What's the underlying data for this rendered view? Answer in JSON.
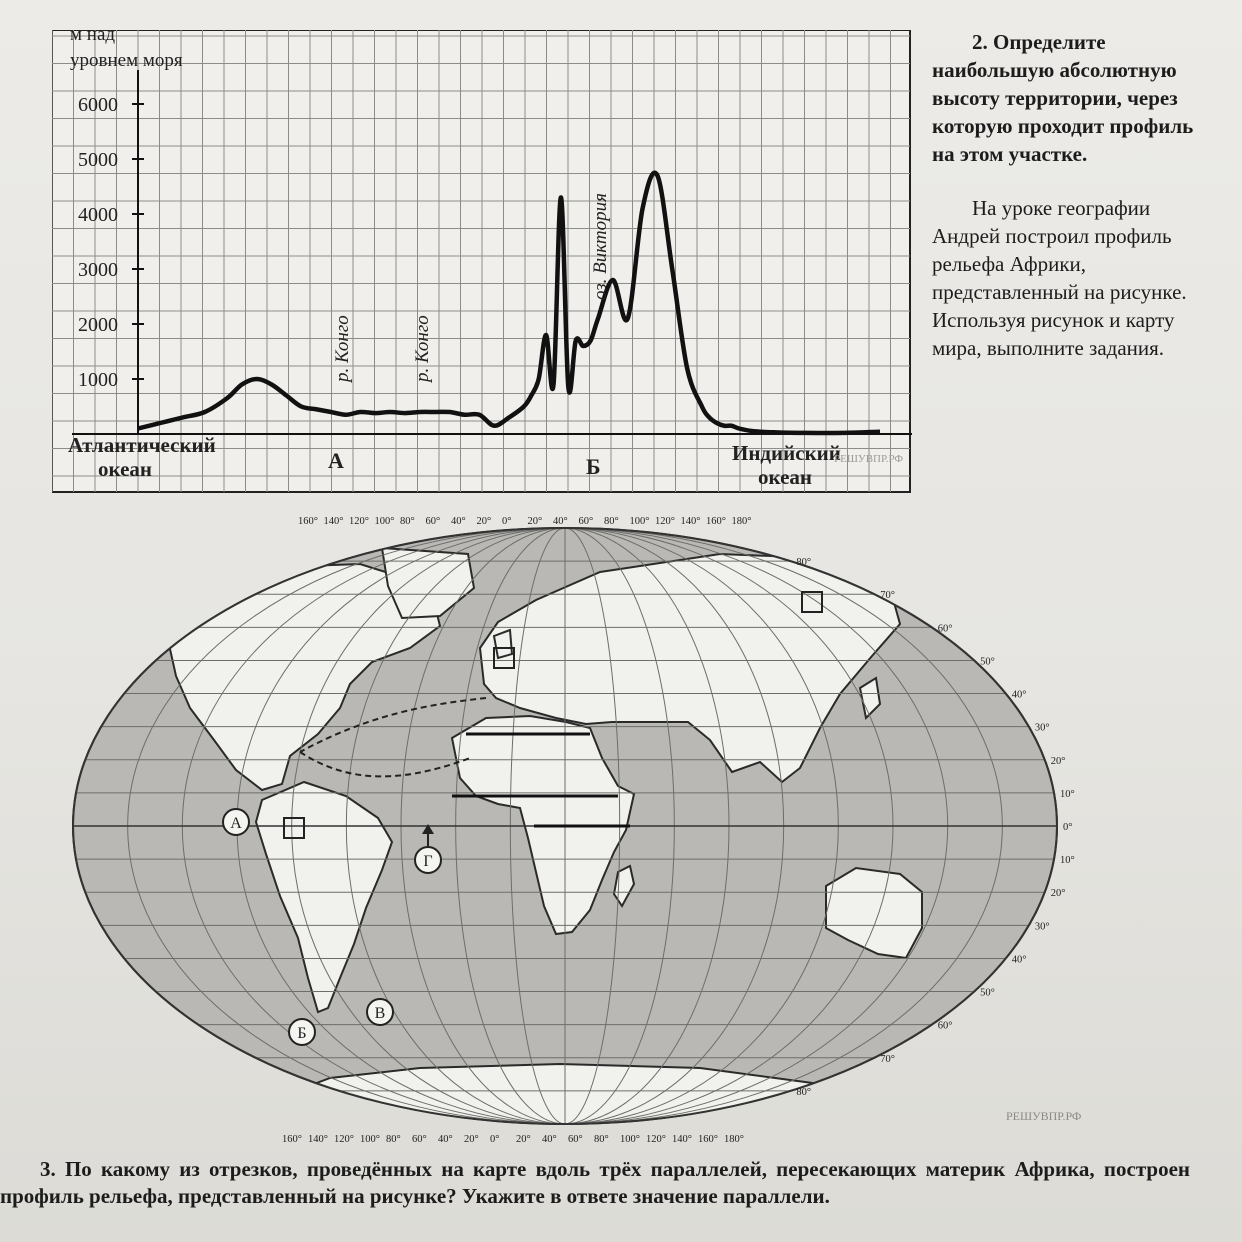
{
  "chart_data": {
    "type": "area",
    "ylabel": "м над уровнем моря",
    "ylim": [
      0,
      6000
    ],
    "yticks": [
      1000,
      2000,
      3000,
      4000,
      5000,
      6000
    ],
    "x": [
      0,
      3,
      6,
      9,
      12,
      14,
      16,
      18,
      20,
      22,
      24,
      26,
      28,
      30,
      32,
      34,
      36,
      38,
      40,
      42,
      44,
      46,
      48,
      50,
      52,
      53,
      54,
      55,
      56,
      57,
      58,
      59,
      60,
      61,
      62,
      64,
      66,
      68,
      70,
      72,
      74,
      76,
      77,
      78,
      79,
      80,
      81,
      83,
      86,
      90,
      95,
      100
    ],
    "y": [
      100,
      200,
      300,
      400,
      650,
      900,
      1000,
      900,
      700,
      500,
      450,
      400,
      350,
      400,
      380,
      400,
      380,
      400,
      400,
      400,
      350,
      350,
      150,
      300,
      500,
      700,
      1000,
      1800,
      900,
      4300,
      850,
      1700,
      1600,
      1700,
      2100,
      2800,
      2100,
      4100,
      4700,
      3000,
      1200,
      500,
      300,
      200,
      150,
      150,
      100,
      50,
      30,
      20,
      20,
      40
    ],
    "labels": {
      "left_bottom": [
        "Атлантический",
        "океан"
      ],
      "right_bottom": [
        "Индийский",
        "океан"
      ],
      "point_a": "А",
      "point_b": "Б",
      "river1": "р. Конго",
      "river2": "р. Конго",
      "lake": "оз. Виктория"
    },
    "watermark": "РЕШУВПР.РФ"
  },
  "question2": {
    "title": "2. Определите наибольшую абсолютную высоту территории, через которую проходит профиль на этом участке.",
    "intro": "На уроке географии Андрей построил профиль рельефа Африки, представленный на рисунке. Используя рисунок и карту мира, выполните задания."
  },
  "map": {
    "top_lon_labels": [
      "160°",
      "140°",
      "120°",
      "100°",
      "80°",
      "60°",
      "40°",
      "20°",
      "0°",
      "20°",
      "40°",
      "60°",
      "80°",
      "100°",
      "120°",
      "140°",
      "160°",
      "180°"
    ],
    "bottom_lon_labels": [
      "160°",
      "140°",
      "120°",
      "100°",
      "80°",
      "60°",
      "40°",
      "20°",
      "0°",
      "20°",
      "40°",
      "60°",
      "80°",
      "100°",
      "120°",
      "140°",
      "160°",
      "180°"
    ],
    "lat_labels_north": [
      "80°",
      "70°",
      "60°",
      "50°",
      "40°",
      "30°",
      "20°",
      "10°",
      "0°"
    ],
    "lat_labels_south": [
      "10°",
      "20°",
      "30°",
      "40°",
      "50°",
      "60°",
      "70°",
      "80°"
    ],
    "markers": {
      "a": "А",
      "b": "Б",
      "v": "В",
      "g": "Г"
    },
    "watermark": "РЕШУВПР.РФ",
    "colors": {
      "ocean": "#b9b8b4",
      "land": "#f1f1ee",
      "grid": "#6d6d6a"
    }
  },
  "question3": {
    "text": "3. По какому из отрезков, проведённых на карте вдоль трёх параллелей, пересекающих материк Африка, построен профиль рельефа, представленный на рисунке? Укажите в ответе значение параллели."
  }
}
